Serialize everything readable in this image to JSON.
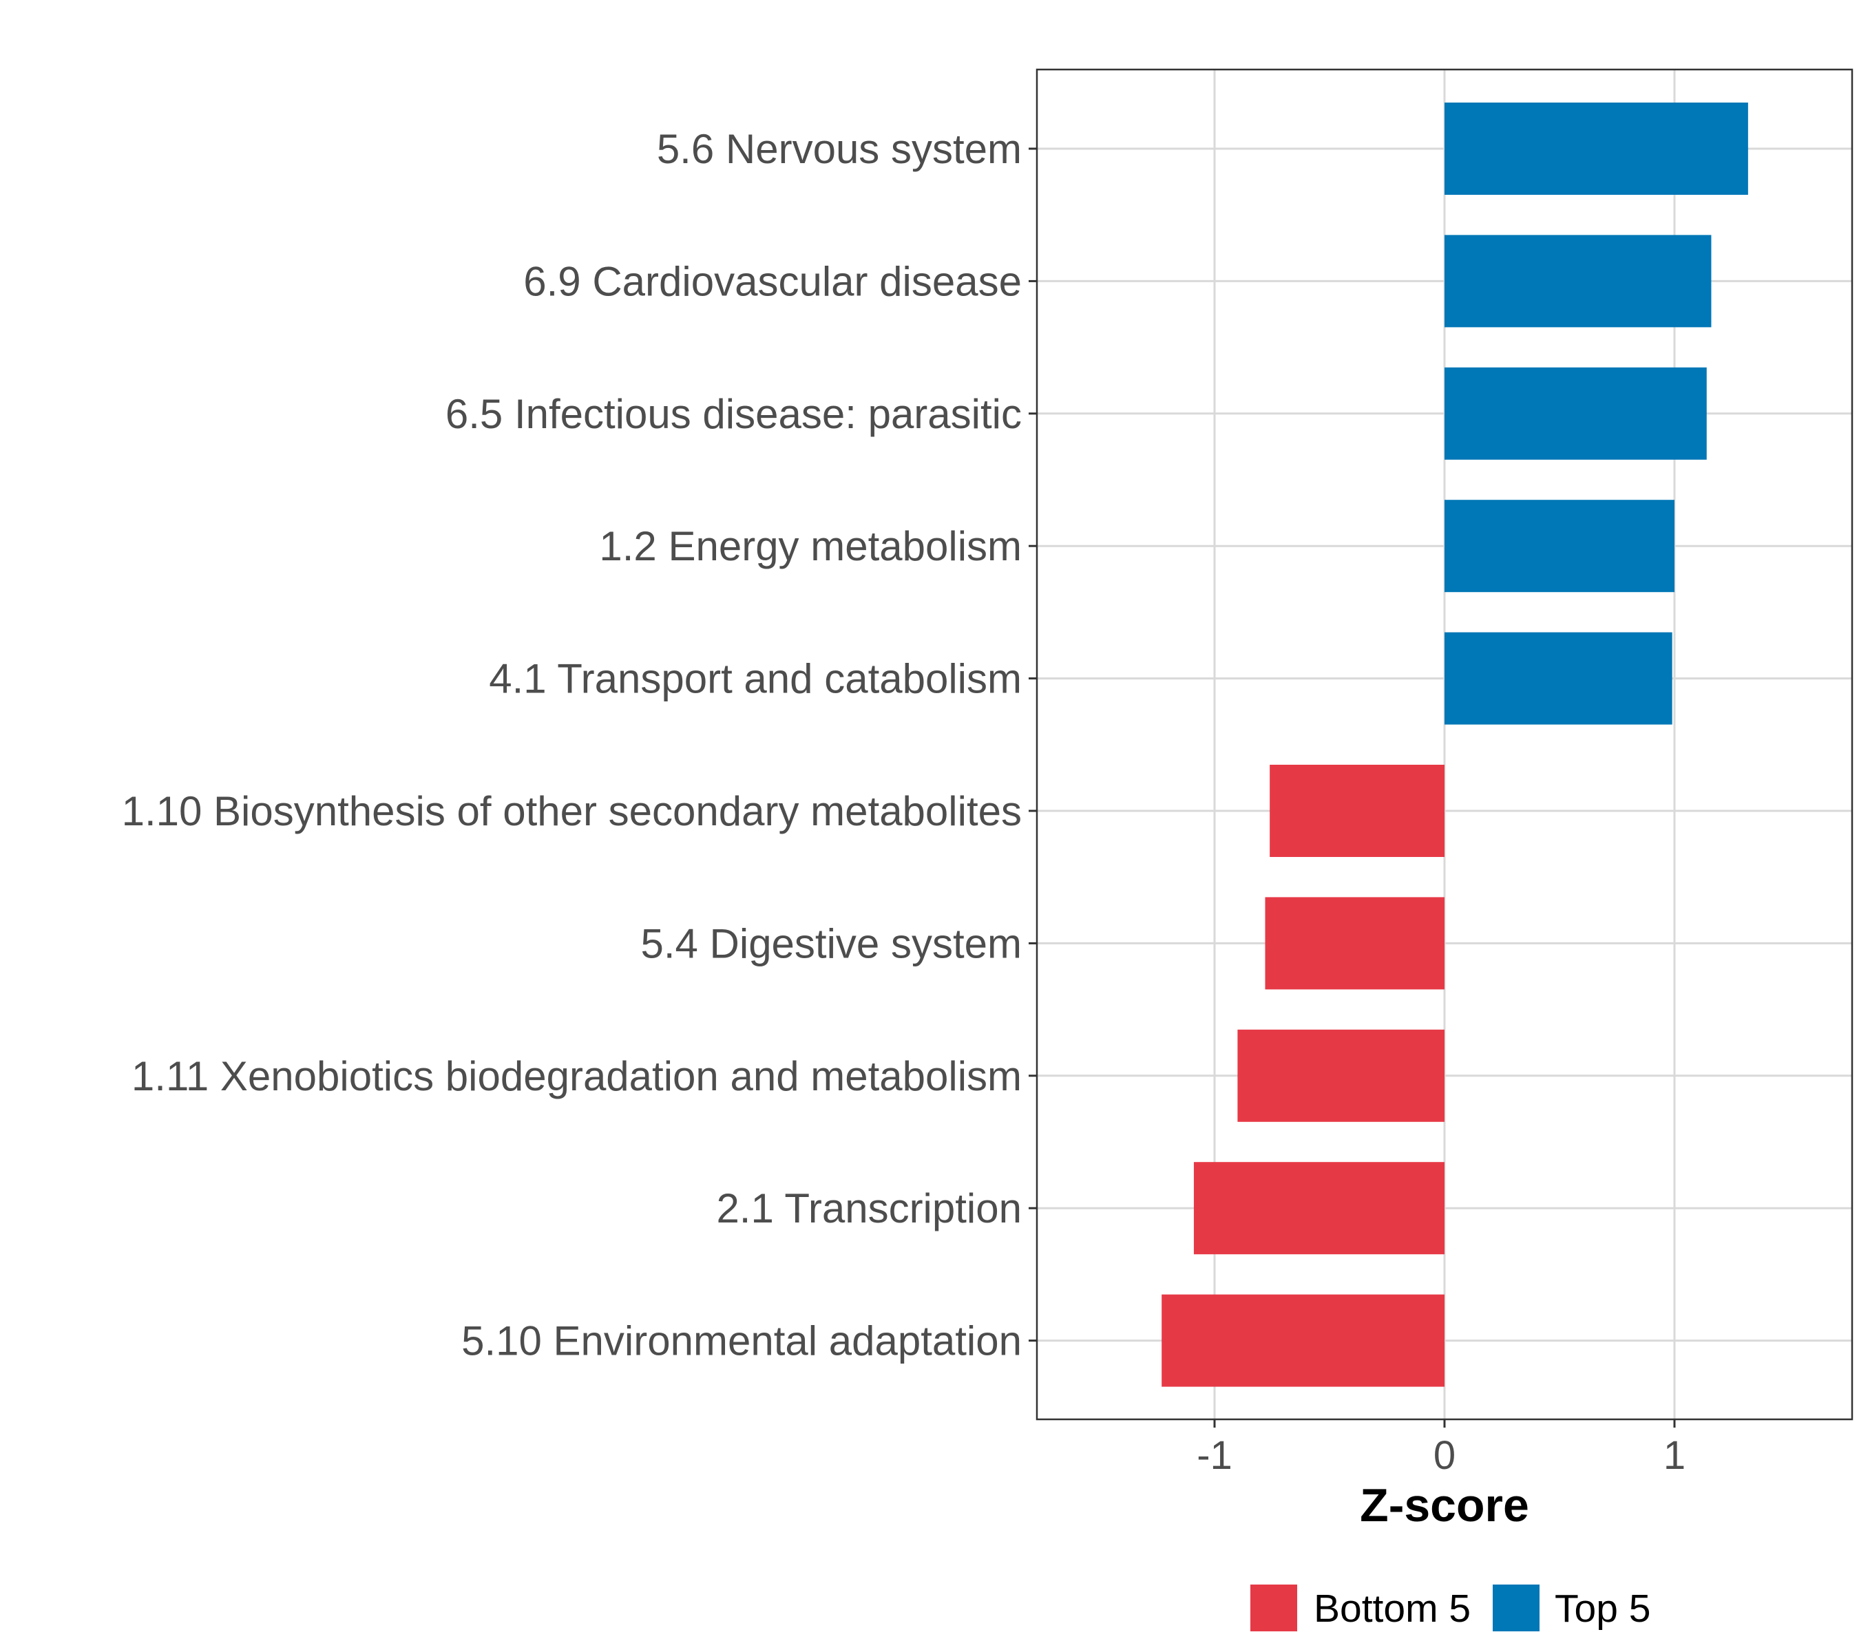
{
  "chart_data": {
    "type": "bar",
    "orientation": "horizontal",
    "categories": [
      "5.6 Nervous system",
      "6.9 Cardiovascular disease",
      "6.5 Infectious disease: parasitic",
      "1.2 Energy metabolism",
      "4.1 Transport and catabolism",
      "1.10 Biosynthesis of other secondary metabolites",
      "5.4 Digestive system",
      "1.11 Xenobiotics biodegradation and metabolism",
      "2.1 Transcription",
      "5.10 Environmental adaptation"
    ],
    "values": [
      1.32,
      1.16,
      1.14,
      1.0,
      0.99,
      -0.76,
      -0.78,
      -0.9,
      -1.09,
      -1.23
    ],
    "groups": [
      "Top 5",
      "Top 5",
      "Top 5",
      "Top 5",
      "Top 5",
      "Bottom 5",
      "Bottom 5",
      "Bottom 5",
      "Bottom 5",
      "Bottom 5"
    ],
    "title": "",
    "xlabel": "Z-score",
    "ylabel": "",
    "xlim": [
      -1.77,
      1.77
    ],
    "xticks": [
      -1,
      0,
      1
    ],
    "xtick_labels": [
      "-1",
      "0",
      "1"
    ],
    "grid": true,
    "legend": {
      "position": "bottom",
      "entries": [
        {
          "label": "Bottom 5",
          "color": "#e63946"
        },
        {
          "label": "Top 5",
          "color": "#0077b6"
        }
      ]
    },
    "colors": {
      "Top 5": "#0077b6",
      "Bottom 5": "#e63946"
    }
  }
}
